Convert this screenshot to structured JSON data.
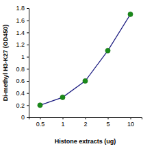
{
  "chart_data": {
    "type": "line",
    "categories": [
      "0.5",
      "1",
      "2",
      "5",
      "10"
    ],
    "values": [
      0.2,
      0.33,
      0.6,
      1.1,
      1.7
    ],
    "color": "#1a1a80",
    "marker": "circle",
    "x_label": "Histone extracts (ug)",
    "y_label": "Di-methyl H3-K27 (OD450)",
    "ylim": [
      0,
      1.8
    ],
    "yticks": [
      0,
      0.2,
      0.4,
      0.6,
      0.8,
      1,
      1.2,
      1.4,
      1.6,
      1.8
    ],
    "grid": false
  }
}
